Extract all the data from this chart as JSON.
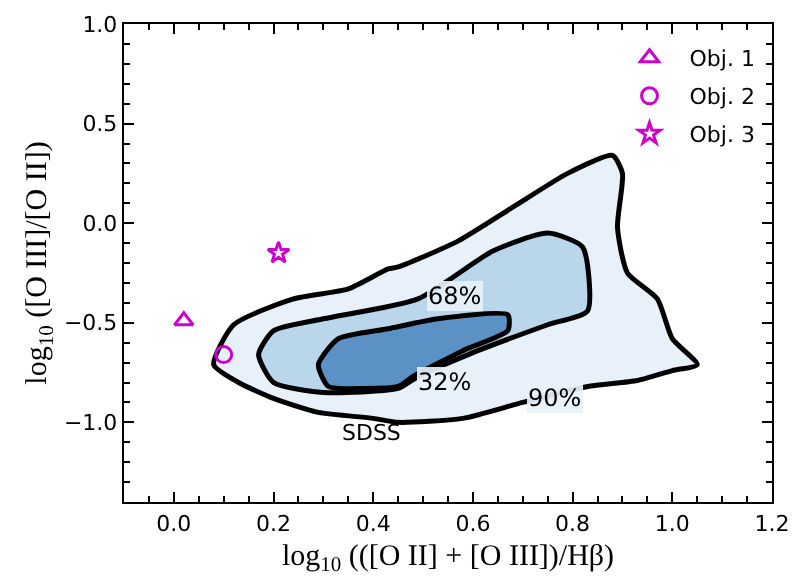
{
  "chart_data": {
    "type": "scatter",
    "xlabel": "log$_{10}$ (([O II] + [O III])/Hβ)",
    "ylabel": "log$_{10}$ ([O III]/[O II])",
    "xlim": [
      -0.1,
      1.2
    ],
    "xticks": [
      {
        "value": 0,
        "label": "0.0"
      },
      0.2,
      0.4,
      0.6,
      0.8,
      {
        "value": 1,
        "label": "1.0"
      },
      1.2
    ],
    "ylim": [
      -1.4,
      1.0
    ],
    "yticks": [
      {
        "value": -1,
        "label": "−1.0"
      },
      {
        "value": -0.5,
        "label": "−0.5"
      },
      {
        "value": 0,
        "label": "0.0"
      },
      0.5,
      {
        "value": 1,
        "label": "1.0"
      }
    ],
    "grid": false,
    "legend": "top right",
    "series": [
      {
        "type": "area",
        "color": "#e8f1fa",
        "x": [
          0.08,
          0.12,
          0.24,
          0.35,
          0.43,
          0.45,
          0.57,
          0.68,
          0.79,
          0.88,
          0.9,
          0.89,
          0.91,
          0.97,
          1.0,
          1.05,
          1.0,
          0.93,
          0.83,
          0.7,
          0.58,
          0.45,
          0.4,
          0.29,
          0.2,
          0.13,
          0.08
        ],
        "values": [
          -0.71,
          -0.51,
          -0.38,
          -0.33,
          -0.23,
          -0.22,
          -0.09,
          0.08,
          0.25,
          0.34,
          0.25,
          -0.02,
          -0.25,
          -0.38,
          -0.58,
          -0.71,
          -0.74,
          -0.79,
          -0.82,
          -0.9,
          -0.98,
          -1.0,
          -0.98,
          -0.95,
          -0.88,
          -0.8,
          -0.71
        ]
      },
      {
        "type": "area",
        "color": "#b9d6ea",
        "x": [
          0.17,
          0.2,
          0.3,
          0.49,
          0.64,
          0.75,
          0.82,
          0.83,
          0.75,
          0.61,
          0.49,
          0.45,
          0.3,
          0.2,
          0.17
        ],
        "values": [
          -0.66,
          -0.54,
          -0.48,
          -0.38,
          -0.14,
          -0.05,
          -0.12,
          -0.44,
          -0.51,
          -0.64,
          -0.77,
          -0.83,
          -0.85,
          -0.8,
          -0.66
        ]
      },
      {
        "type": "area",
        "color": "#5b91c4",
        "x": [
          0.29,
          0.33,
          0.43,
          0.53,
          0.67,
          0.67,
          0.58,
          0.48,
          0.45,
          0.38,
          0.31,
          0.29
        ],
        "values": [
          -0.71,
          -0.58,
          -0.53,
          -0.48,
          -0.46,
          -0.54,
          -0.64,
          -0.77,
          -0.82,
          -0.83,
          -0.82,
          -0.71
        ]
      },
      {
        "name": "Obj. 1",
        "color": "#cc00cc",
        "marker": "triangle",
        "x": [
          0.02
        ],
        "values": [
          -0.49
        ]
      },
      {
        "name": "Obj. 2",
        "color": "#cc00cc",
        "marker": "circle",
        "x": [
          0.1
        ],
        "values": [
          -0.66
        ]
      },
      {
        "name": "Obj. 3",
        "color": "#cc00cc",
        "marker": "star",
        "x": [
          0.21
        ],
        "values": [
          -0.15
        ]
      }
    ],
    "annotations": [
      {
        "text": "68%",
        "x": 0.565,
        "y": -0.37
      },
      {
        "text": "32%",
        "x": 0.545,
        "y": -0.8
      },
      {
        "text": "90%",
        "x": 0.765,
        "y": -0.88
      },
      "SDSS"
    ]
  }
}
